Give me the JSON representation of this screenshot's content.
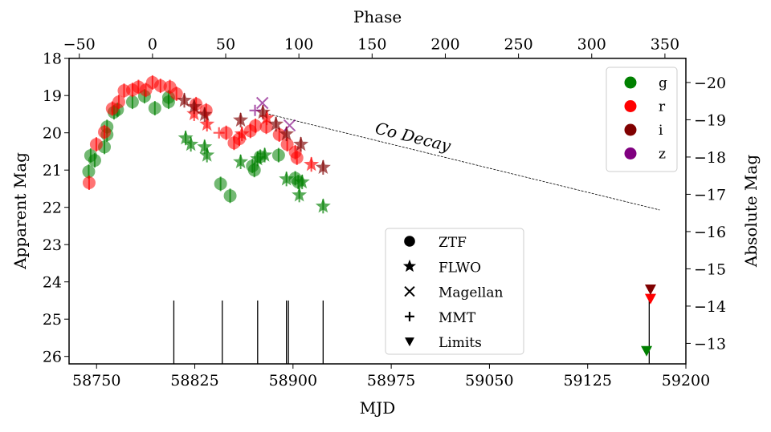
{
  "chart_data": {
    "type": "scatter",
    "xlabel": "MJD",
    "ylabel": "Apparent Mag",
    "top_xlabel": "Phase",
    "right_ylabel": "Absolute Mag",
    "xlim": [
      58729,
      59200
    ],
    "ylim": [
      26.2,
      18
    ],
    "y_inverted": true,
    "x_ticks": [
      "58750",
      "58825",
      "58900",
      "58975",
      "59050",
      "59125",
      "59200"
    ],
    "y_ticks": [
      "18",
      "19",
      "20",
      "21",
      "22",
      "23",
      "24",
      "25",
      "26"
    ],
    "top_ticks": [
      "−50",
      "0",
      "50",
      "100",
      "150",
      "200",
      "250",
      "300",
      "350"
    ],
    "right_ticks": [
      "−20",
      "−19",
      "−18",
      "−17",
      "−16",
      "−15",
      "−14",
      "−13"
    ],
    "phase_zero_mjd": 58792.7,
    "phase_time_dilation": 1.118,
    "distance_modulus": 38.65,
    "grid": false,
    "colors": {
      "g": "#008000",
      "r": "#ff0000",
      "i": "#800000",
      "z": "#800080"
    },
    "filter_legend": {
      "position": "top-right",
      "entries": [
        "g",
        "r",
        "i",
        "z"
      ]
    },
    "marker_legend": {
      "position": "lower-center",
      "entries": [
        {
          "marker": "circle",
          "label": "ZTF"
        },
        {
          "marker": "star",
          "label": "FLWO"
        },
        {
          "marker": "x",
          "label": "Magellan"
        },
        {
          "marker": "plus",
          "label": "MMT"
        },
        {
          "marker": "triangle-down",
          "label": "Limits"
        }
      ]
    },
    "annotation": {
      "text": "Co Decay",
      "line": [
        [
          58881.5,
          19.5
        ],
        [
          59180,
          22.07
        ]
      ]
    },
    "spectra_epochs_mjd": [
      58809,
      58846,
      58873,
      58895,
      58896.5,
      58923,
      59172
    ],
    "series": [
      {
        "filter": "g",
        "instrument": "ZTF",
        "points": [
          [
            58744,
            21.04
          ],
          [
            58745.5,
            20.61
          ],
          [
            58748.6,
            20.74
          ],
          [
            58756,
            20.38
          ],
          [
            58758,
            20.05
          ],
          [
            58758,
            19.84
          ],
          [
            58763.3,
            19.45
          ],
          [
            58766,
            19.38
          ],
          [
            58777.4,
            19.17
          ],
          [
            58786.6,
            19.02
          ],
          [
            58794.5,
            19.34
          ],
          [
            58805,
            19.17
          ],
          [
            58805,
            19.05
          ],
          [
            58844.7,
            21.37
          ],
          [
            58852,
            21.69
          ],
          [
            58869,
            20.89
          ],
          [
            58870.5,
            21.0
          ],
          [
            58875,
            20.64
          ],
          [
            58889,
            20.6
          ],
          [
            58901.7,
            21.22
          ],
          [
            58904,
            21.32
          ]
        ]
      },
      {
        "filter": "r",
        "instrument": "ZTF",
        "points": [
          [
            58744.3,
            21.34
          ],
          [
            58749.8,
            20.31
          ],
          [
            58756,
            19.98
          ],
          [
            58762,
            19.35
          ],
          [
            58767,
            19.17
          ],
          [
            58771,
            18.87
          ],
          [
            58777.4,
            18.85
          ],
          [
            58782,
            18.77
          ],
          [
            58787.6,
            18.85
          ],
          [
            58792.7,
            18.65
          ],
          [
            58798.8,
            18.74
          ],
          [
            58806,
            18.77
          ],
          [
            58811,
            18.95
          ],
          [
            58826,
            19.23
          ],
          [
            58833.7,
            19.4
          ],
          [
            58849,
            20.0
          ],
          [
            58855,
            20.27
          ],
          [
            58859,
            20.16
          ],
          [
            58867.5,
            19.95
          ],
          [
            58871.3,
            19.81
          ],
          [
            58879.6,
            19.84
          ],
          [
            58889.5,
            20.05
          ],
          [
            58895.6,
            20.31
          ],
          [
            58901.7,
            20.52
          ],
          [
            58903,
            20.67
          ]
        ]
      },
      {
        "filter": "g",
        "instrument": "FLWO",
        "points": [
          [
            58818,
            20.14
          ],
          [
            58822,
            20.31
          ],
          [
            58832.5,
            20.38
          ],
          [
            58834.3,
            20.6
          ],
          [
            58860,
            20.78
          ],
          [
            58878.4,
            20.6
          ],
          [
            58873,
            20.7
          ],
          [
            58895,
            21.24
          ],
          [
            58907,
            21.32
          ],
          [
            58904.8,
            21.67
          ],
          [
            58923,
            21.97
          ]
        ]
      },
      {
        "filter": "r",
        "instrument": "FLWO",
        "points": [
          [
            58824.5,
            19.49
          ],
          [
            58834.3,
            19.77
          ],
          [
            58861,
            20.03
          ],
          [
            58914,
            20.85
          ],
          [
            58880,
            19.6
          ]
        ]
      },
      {
        "filter": "i",
        "instrument": "FLWO",
        "points": [
          [
            58817,
            19.13
          ],
          [
            58824.5,
            19.3
          ],
          [
            58832.5,
            19.51
          ],
          [
            58860,
            19.66
          ],
          [
            58877,
            19.45
          ],
          [
            58887,
            19.77
          ],
          [
            58895,
            20.03
          ],
          [
            58906,
            20.31
          ],
          [
            58923,
            20.93
          ]
        ]
      },
      {
        "filter": "z",
        "instrument": "Magellan",
        "points": [
          [
            58876.6,
            19.2
          ],
          [
            58897.4,
            19.8
          ]
        ]
      },
      {
        "filter": "z",
        "instrument": "MMT",
        "points": [
          [
            58871,
            19.4
          ]
        ]
      },
      {
        "filter": "r",
        "instrument": "MMT",
        "points": [
          [
            58843.5,
            20.0
          ]
        ]
      },
      {
        "filter": "g",
        "instrument": "Limits",
        "points": [
          [
            59170,
            25.85
          ]
        ]
      },
      {
        "filter": "r",
        "instrument": "Limits",
        "points": [
          [
            59173,
            24.45
          ]
        ]
      },
      {
        "filter": "i",
        "instrument": "Limits",
        "points": [
          [
            59173,
            24.2
          ]
        ]
      }
    ]
  }
}
